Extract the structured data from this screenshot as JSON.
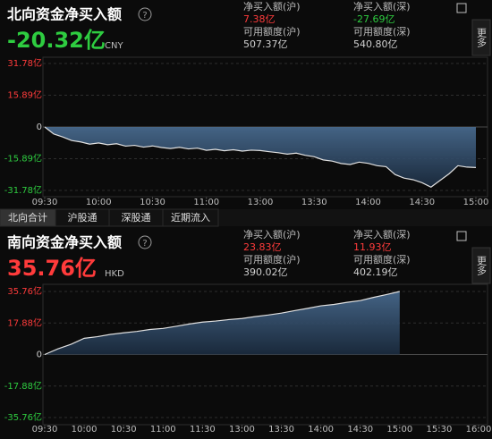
{
  "tabs": [
    "北向合计",
    "沪股通",
    "深股通",
    "近期流入"
  ],
  "chart_data": [
    {
      "type": "line",
      "title": "北向资金净买入额",
      "big_value": "-20.32亿",
      "big_color": "#2ecc40",
      "currency": "CNY",
      "more_label": "更多",
      "stats": [
        {
          "label": "净买入额(沪)",
          "value": "7.38亿",
          "color": "#ff3b3b"
        },
        {
          "label": "净买入额(深)",
          "value": "-27.69亿",
          "color": "#2ecc40"
        },
        {
          "label": "可用额度(沪)",
          "value": "507.37亿",
          "color": "#cfcfcf"
        },
        {
          "label": "可用额度(深)",
          "value": "540.80亿",
          "color": "#cfcfcf"
        }
      ],
      "x": [
        0,
        5,
        10,
        15,
        20,
        25,
        30,
        35,
        40,
        45,
        50,
        55,
        60,
        65,
        70,
        75,
        80,
        85,
        90,
        95,
        100,
        105,
        110,
        115,
        120,
        125,
        130,
        135,
        140,
        145,
        150,
        155,
        160,
        165,
        170,
        175,
        180,
        185,
        190,
        195,
        200,
        205,
        210,
        215,
        220,
        225,
        230,
        235,
        240
      ],
      "series": [
        {
          "color": "#e0e0e0",
          "values": [
            0,
            -3.5,
            -5,
            -6.8,
            -7.5,
            -8.6,
            -8,
            -8.9,
            -8.4,
            -9.6,
            -9.2,
            -10.1,
            -9.5,
            -10.3,
            -10.8,
            -10.2,
            -11,
            -10.6,
            -11.7,
            -11.2,
            -11.9,
            -11.4,
            -12.1,
            -11.6,
            -11.8,
            -12.4,
            -12.9,
            -13.6,
            -13.1,
            -14.2,
            -14.9,
            -16.5,
            -17.1,
            -18.3,
            -18.8,
            -17.6,
            -18.2,
            -19.4,
            -19.9,
            -23.8,
            -25.6,
            -26.4,
            -27.9,
            -30.1,
            -26.8,
            -23.5,
            -19.4,
            -20.1,
            -20.32
          ]
        }
      ],
      "xlim": [
        0,
        240
      ],
      "xticks": [
        {
          "value": 0,
          "label": "09:30"
        },
        {
          "value": 30,
          "label": "10:00"
        },
        {
          "value": 60,
          "label": "10:30"
        },
        {
          "value": 90,
          "label": "11:00"
        },
        {
          "value": 120,
          "label": "13:00"
        },
        {
          "value": 150,
          "label": "13:30"
        },
        {
          "value": 180,
          "label": "14:00"
        },
        {
          "value": 210,
          "label": "14:30"
        },
        {
          "value": 240,
          "label": "15:00"
        }
      ],
      "ylim": [
        -31.78,
        31.78
      ],
      "yticks": [
        {
          "value": 31.78,
          "label": "31.78亿"
        },
        {
          "value": 15.89,
          "label": "15.89亿"
        },
        0,
        {
          "value": -15.89,
          "label": "-15.89亿"
        },
        {
          "value": -31.78,
          "label": "-31.78亿"
        }
      ],
      "grid": true,
      "fill": true
    },
    {
      "type": "line",
      "title": "南向资金净买入额",
      "big_value": "35.76亿",
      "big_color": "#ff3b3b",
      "currency": "HKD",
      "more_label": "更多",
      "stats": [
        {
          "label": "净买入额(沪)",
          "value": "23.83亿",
          "color": "#ff3b3b"
        },
        {
          "label": "净买入额(深)",
          "value": "11.93亿",
          "color": "#ff3b3b"
        },
        {
          "label": "可用额度(沪)",
          "value": "390.02亿",
          "color": "#cfcfcf"
        },
        {
          "label": "可用额度(深)",
          "value": "402.19亿",
          "color": "#cfcfcf"
        }
      ],
      "x": [
        0,
        10,
        20,
        30,
        40,
        50,
        60,
        70,
        80,
        90,
        100,
        110,
        120,
        130,
        140,
        150,
        160,
        170,
        180,
        190,
        200,
        210,
        220,
        230,
        240,
        250,
        260,
        270
      ],
      "series": [
        {
          "color": "#e0e0e0",
          "values": [
            0,
            3.2,
            5.8,
            9.2,
            10.1,
            11.4,
            12.3,
            13.1,
            14.2,
            14.8,
            16.0,
            17.3,
            18.4,
            19.0,
            19.8,
            20.4,
            21.5,
            22.4,
            23.5,
            24.9,
            26.2,
            27.6,
            28.4,
            29.6,
            30.6,
            32.4,
            34.0,
            35.76
          ]
        }
      ],
      "xlim": [
        0,
        330
      ],
      "xticks": [
        {
          "value": 0,
          "label": "09:30"
        },
        {
          "value": 30,
          "label": "10:00"
        },
        {
          "value": 60,
          "label": "10:30"
        },
        {
          "value": 90,
          "label": "11:00"
        },
        {
          "value": 120,
          "label": "11:30"
        },
        {
          "value": 150,
          "label": "13:00"
        },
        {
          "value": 180,
          "label": "13:30"
        },
        {
          "value": 210,
          "label": "14:00"
        },
        {
          "value": 240,
          "label": "14:30"
        },
        {
          "value": 270,
          "label": "15:00"
        },
        {
          "value": 300,
          "label": "15:30"
        },
        {
          "value": 330,
          "label": "16:00"
        }
      ],
      "ylim": [
        -35.76,
        35.76
      ],
      "yticks": [
        {
          "value": 35.76,
          "label": "35.76亿"
        },
        {
          "value": 17.88,
          "label": "17.88亿"
        },
        0,
        {
          "value": -17.88,
          "label": "-17.88亿"
        },
        {
          "value": -35.76,
          "label": "-35.76亿"
        }
      ],
      "grid": true,
      "fill": true
    }
  ]
}
